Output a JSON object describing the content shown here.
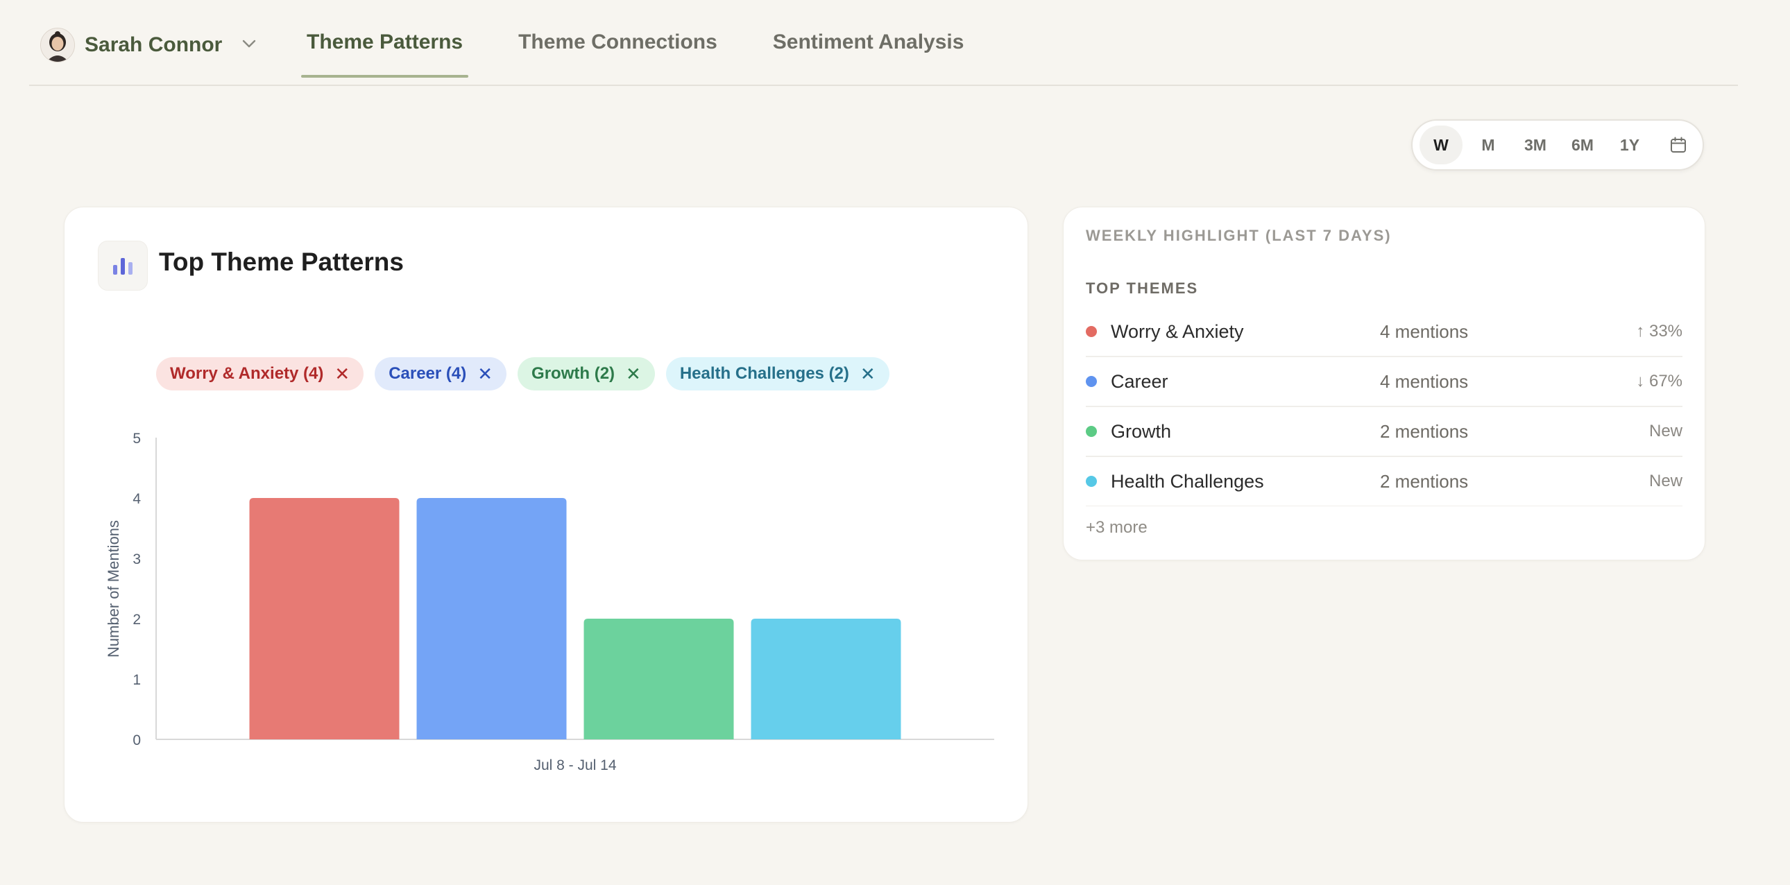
{
  "user": {
    "name": "Sarah Connor"
  },
  "tabs": [
    {
      "label": "Theme Patterns",
      "active": true
    },
    {
      "label": "Theme Connections",
      "active": false
    },
    {
      "label": "Sentiment Analysis",
      "active": false
    }
  ],
  "range": {
    "options": [
      "W",
      "M",
      "3M",
      "6M",
      "1Y"
    ],
    "selected": "W"
  },
  "chart_card": {
    "title": "Top Theme Patterns",
    "chips": [
      {
        "label": "Worry & Anxiety (4)",
        "bg": "#fbe3e1",
        "fg": "#b02a2a"
      },
      {
        "label": "Career (4)",
        "bg": "#e1eafb",
        "fg": "#2a4fb9"
      },
      {
        "label": "Growth (2)",
        "bg": "#dcf5e4",
        "fg": "#2d7a4a"
      },
      {
        "label": "Health Challenges (2)",
        "bg": "#ddf5fb",
        "fg": "#26708a"
      }
    ]
  },
  "chart_data": {
    "type": "bar",
    "categories": [
      "Jul 8 - Jul 14"
    ],
    "series": [
      {
        "name": "Worry & Anxiety",
        "values": [
          4
        ],
        "color": "#e77a74"
      },
      {
        "name": "Career",
        "values": [
          4
        ],
        "color": "#74a4f6"
      },
      {
        "name": "Growth",
        "values": [
          2
        ],
        "color": "#6cd29d"
      },
      {
        "name": "Health Challenges",
        "values": [
          2
        ],
        "color": "#66cfec"
      }
    ],
    "ylabel": "Number of Mentions",
    "xlabel": "",
    "ylim": [
      0,
      5
    ],
    "yticks": [
      "0",
      "1",
      "2",
      "3",
      "4",
      "5"
    ],
    "grid": false
  },
  "highlight": {
    "kicker": "WEEKLY HIGHLIGHT (LAST 7 DAYS)",
    "subtitle": "TOP THEMES",
    "themes": [
      {
        "name": "Worry & Anxiety",
        "mentions": "4 mentions",
        "change": "↑ 33%",
        "color": "#e36b62"
      },
      {
        "name": "Career",
        "mentions": "4 mentions",
        "change": "↓ 67%",
        "color": "#5f93ef"
      },
      {
        "name": "Growth",
        "mentions": "2 mentions",
        "change": "New",
        "color": "#5ccb85"
      },
      {
        "name": "Health Challenges",
        "mentions": "2 mentions",
        "change": "New",
        "color": "#56c8e6"
      }
    ],
    "more": "+3 more"
  }
}
